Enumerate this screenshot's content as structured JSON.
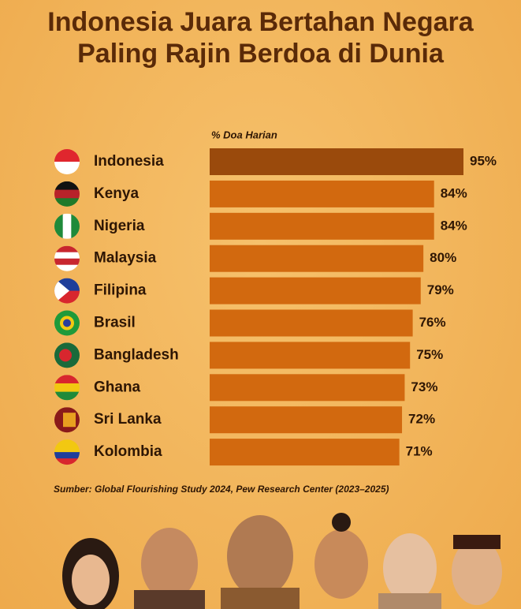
{
  "chart_data": {
    "type": "bar",
    "orientation": "horizontal",
    "title": "Indonesia Juara Bertahan Negara Paling Rajin Berdoa di Dunia",
    "x_label": "% Doa Harian",
    "categories": [
      "Indonesia",
      "Kenya",
      "Nigeria",
      "Malaysia",
      "Filipina",
      "Brasil",
      "Bangladesh",
      "Ghana",
      "Sri Lanka",
      "Kolombia"
    ],
    "values": [
      95,
      84,
      84,
      80,
      79,
      76,
      75,
      73,
      72,
      71
    ],
    "value_labels": [
      "95%",
      "84%",
      "84%",
      "80%",
      "79%",
      "76%",
      "75%",
      "73%",
      "72%",
      "71%"
    ],
    "colors": [
      "#9a4a0c",
      "#d2690f",
      "#d2690f",
      "#d2690f",
      "#d2690f",
      "#d2690f",
      "#d2690f",
      "#d2690f",
      "#d2690f",
      "#d2690f"
    ],
    "source": "Sumber: Global Flourishing Study 2024, Pew Research Center (2023–2025)"
  }
}
